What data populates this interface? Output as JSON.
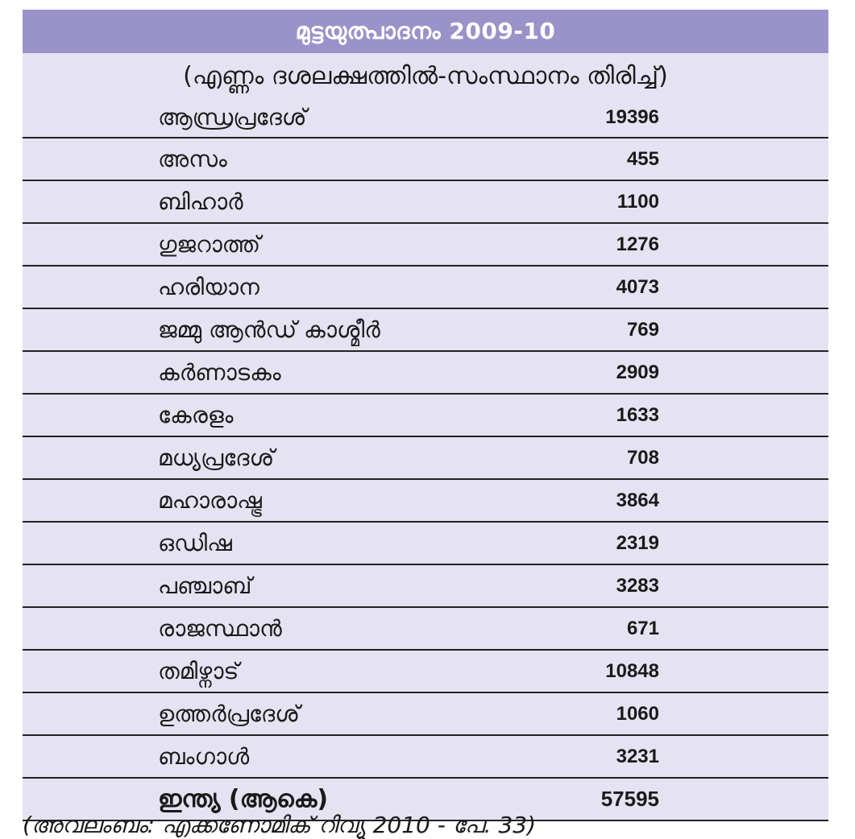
{
  "title": "മുട്ടയുത്പാദനം 2009-10",
  "subtitle": "(എണ്ണം ദശലക്ഷത്തിൽ-സംസ്ഥാനം തിരിച്ച്)",
  "rows": [
    {
      "state": "ആന്ധ്രപ്രദേശ്",
      "value": "19396"
    },
    {
      "state": "അസം",
      "value": "455"
    },
    {
      "state": "ബിഹാർ",
      "value": "1100"
    },
    {
      "state": "ഗുജറാത്ത്",
      "value": "1276"
    },
    {
      "state": "ഹരിയാന",
      "value": "4073"
    },
    {
      "state": "ജമ്മു ആൻഡ് കാശ്മീർ",
      "value": "769"
    },
    {
      "state": "കർണാടകം",
      "value": "2909"
    },
    {
      "state": "കേരളം",
      "value": "1633"
    },
    {
      "state": "മധ്യപ്രദേശ്",
      "value": "708"
    },
    {
      "state": "മഹാരാഷ്ട്ര",
      "value": "3864"
    },
    {
      "state": "ഒഡിഷ",
      "value": "2319"
    },
    {
      "state": "പഞ്ചാബ്",
      "value": "3283"
    },
    {
      "state": "രാജസ്ഥാൻ",
      "value": "671"
    },
    {
      "state": "തമിഴ്നാട്",
      "value": "10848"
    },
    {
      "state": "ഉത്തർപ്രദേശ്",
      "value": "1060"
    },
    {
      "state": "ബംഗാൾ",
      "value": "3231"
    }
  ],
  "total": {
    "state": "ഇന്ത്യ (ആകെ)",
    "value": "57595"
  },
  "source": "(അവലംബം: എക്കണോമിക് റിവ്യൂ 2010 - പേ. 33)"
}
